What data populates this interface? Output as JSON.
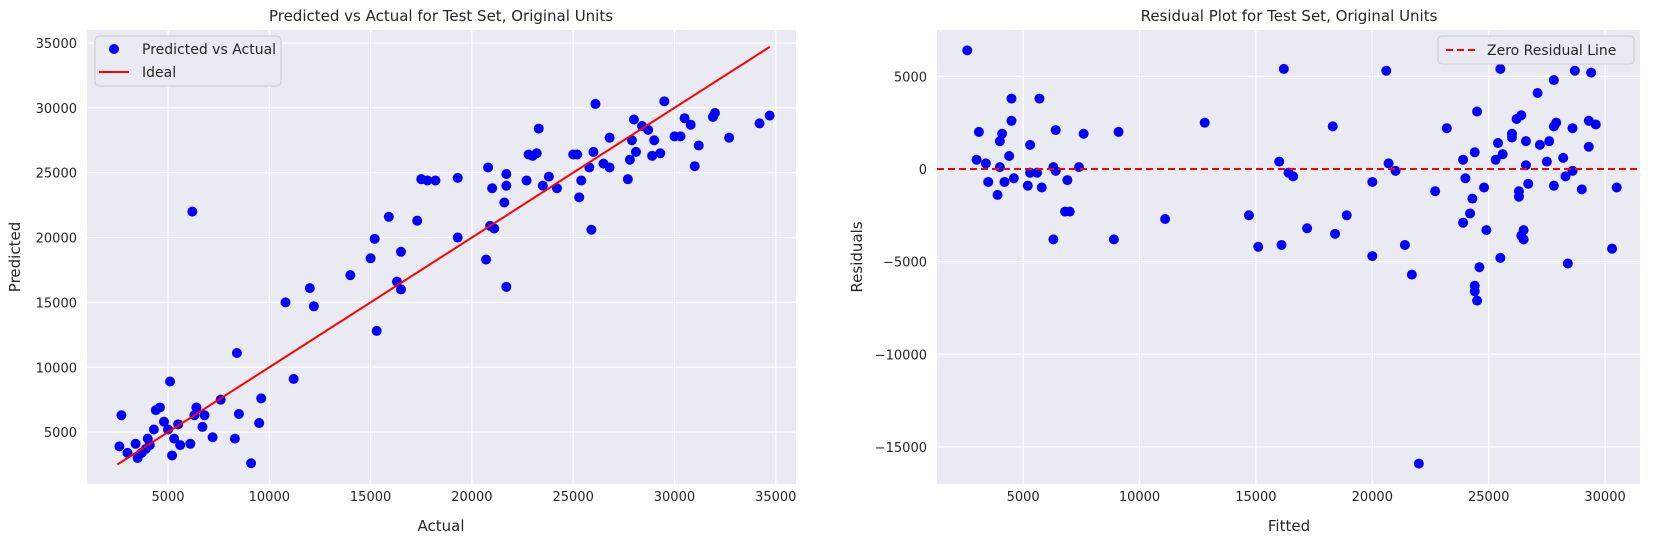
{
  "chart_data": [
    {
      "type": "scatter",
      "title": "Predicted vs Actual for Test Set, Original Units",
      "xlabel": "Actual",
      "ylabel": "Predicted",
      "xlim": [
        1000,
        36000
      ],
      "ylim": [
        1000,
        36000
      ],
      "xticks": [
        5000,
        10000,
        15000,
        20000,
        25000,
        30000,
        35000
      ],
      "yticks": [
        5000,
        10000,
        15000,
        20000,
        25000,
        30000,
        35000
      ],
      "xtick_labels": [
        "5000",
        "10000",
        "15000",
        "20000",
        "25000",
        "30000",
        "35000"
      ],
      "ytick_labels": [
        "5000",
        "10000",
        "15000",
        "20000",
        "25000",
        "30000",
        "35000"
      ],
      "grid": true,
      "legend_position": "top-left",
      "legend": [
        "Predicted vs Actual",
        "Ideal"
      ],
      "series": [
        {
          "name": "Predicted vs Actual",
          "color": "#0000ff",
          "marker": "circle",
          "points": [
            [
              2600,
              3900
            ],
            [
              2700,
              6300
            ],
            [
              3000,
              3400
            ],
            [
              3400,
              4100
            ],
            [
              3500,
              3000
            ],
            [
              3700,
              3400
            ],
            [
              3900,
              3700
            ],
            [
              4000,
              4500
            ],
            [
              4100,
              4000
            ],
            [
              4300,
              5200
            ],
            [
              4400,
              6700
            ],
            [
              4600,
              6900
            ],
            [
              4800,
              5800
            ],
            [
              5000,
              5200
            ],
            [
              5100,
              8900
            ],
            [
              5200,
              3200
            ],
            [
              5300,
              4500
            ],
            [
              5500,
              5600
            ],
            [
              5600,
              4000
            ],
            [
              6100,
              4100
            ],
            [
              6200,
              22000
            ],
            [
              6300,
              6300
            ],
            [
              6400,
              6900
            ],
            [
              6700,
              5400
            ],
            [
              6800,
              6300
            ],
            [
              7200,
              4600
            ],
            [
              7600,
              7500
            ],
            [
              8300,
              4500
            ],
            [
              8400,
              11100
            ],
            [
              8500,
              6400
            ],
            [
              9100,
              2600
            ],
            [
              9500,
              5700
            ],
            [
              9600,
              7600
            ],
            [
              10800,
              15000
            ],
            [
              11200,
              9100
            ],
            [
              12000,
              16100
            ],
            [
              12200,
              14700
            ],
            [
              14000,
              17100
            ],
            [
              15000,
              18400
            ],
            [
              15200,
              19900
            ],
            [
              15300,
              12800
            ],
            [
              15900,
              21600
            ],
            [
              16300,
              16600
            ],
            [
              16500,
              16000
            ],
            [
              16500,
              18900
            ],
            [
              17300,
              21300
            ],
            [
              17500,
              24500
            ],
            [
              17800,
              24400
            ],
            [
              18200,
              24400
            ],
            [
              19300,
              24600
            ],
            [
              19300,
              20000
            ],
            [
              20700,
              18300
            ],
            [
              20800,
              25400
            ],
            [
              20900,
              20900
            ],
            [
              21000,
              23800
            ],
            [
              21100,
              20700
            ],
            [
              21600,
              22700
            ],
            [
              21700,
              24900
            ],
            [
              21700,
              24000
            ],
            [
              21700,
              16200
            ],
            [
              22700,
              24400
            ],
            [
              22800,
              26400
            ],
            [
              23000,
              26300
            ],
            [
              23200,
              26500
            ],
            [
              23300,
              28400
            ],
            [
              23500,
              24000
            ],
            [
              23800,
              24700
            ],
            [
              24200,
              23800
            ],
            [
              25000,
              26400
            ],
            [
              25200,
              26400
            ],
            [
              25300,
              23100
            ],
            [
              25400,
              24400
            ],
            [
              25800,
              25400
            ],
            [
              25900,
              20600
            ],
            [
              26000,
              26600
            ],
            [
              26100,
              30300
            ],
            [
              26500,
              25700
            ],
            [
              26800,
              25400
            ],
            [
              26800,
              27700
            ],
            [
              27700,
              24500
            ],
            [
              27800,
              26000
            ],
            [
              27900,
              27500
            ],
            [
              28000,
              29100
            ],
            [
              28100,
              26600
            ],
            [
              28400,
              28600
            ],
            [
              28700,
              28300
            ],
            [
              28900,
              26300
            ],
            [
              29000,
              27500
            ],
            [
              29300,
              26500
            ],
            [
              29500,
              30500
            ],
            [
              30000,
              27800
            ],
            [
              30300,
              27800
            ],
            [
              30500,
              29200
            ],
            [
              30800,
              28700
            ],
            [
              31000,
              25500
            ],
            [
              31200,
              27100
            ],
            [
              31900,
              29300
            ],
            [
              32000,
              29600
            ],
            [
              32700,
              27700
            ],
            [
              34200,
              28800
            ],
            [
              34700,
              29400
            ]
          ]
        },
        {
          "name": "Ideal",
          "color": "#ff0000",
          "style": "line",
          "points": [
            [
              2500,
              2500
            ],
            [
              34700,
              34700
            ]
          ]
        }
      ]
    },
    {
      "type": "scatter",
      "title": "Residual Plot for Test Set, Original Units",
      "xlabel": "Fitted",
      "ylabel": "Residuals",
      "xlim": [
        1300,
        31500
      ],
      "ylim": [
        -17000,
        7500
      ],
      "xticks": [
        5000,
        10000,
        15000,
        20000,
        25000,
        30000
      ],
      "yticks": [
        -15000,
        -10000,
        -5000,
        0,
        5000
      ],
      "xtick_labels": [
        "5000",
        "10000",
        "15000",
        "20000",
        "25000",
        "30000"
      ],
      "ytick_labels": [
        "−15000",
        "−10000",
        "−5000",
        "0",
        "5000"
      ],
      "grid": true,
      "legend_position": "top-right",
      "legend": [
        "Zero Residual Line"
      ],
      "reference_line": {
        "name": "Zero Residual Line",
        "y": 0,
        "color": "#ff0000",
        "style": "dashed"
      },
      "series": [
        {
          "color": "#0000ff",
          "marker": "circle",
          "points": [
            [
              2600,
              6400
            ],
            [
              3000,
              500
            ],
            [
              3100,
              2000
            ],
            [
              3400,
              300
            ],
            [
              3500,
              -700
            ],
            [
              3900,
              -1400
            ],
            [
              4000,
              1500
            ],
            [
              4000,
              100
            ],
            [
              4100,
              1900
            ],
            [
              4200,
              -700
            ],
            [
              4400,
              700
            ],
            [
              4500,
              3800
            ],
            [
              4500,
              2600
            ],
            [
              4600,
              -500
            ],
            [
              5200,
              -900
            ],
            [
              5300,
              1300
            ],
            [
              5300,
              -200
            ],
            [
              5600,
              -200
            ],
            [
              5700,
              3800
            ],
            [
              5800,
              -1000
            ],
            [
              6300,
              100
            ],
            [
              6300,
              -3800
            ],
            [
              6400,
              -100
            ],
            [
              6400,
              2100
            ],
            [
              6800,
              -2300
            ],
            [
              6900,
              -600
            ],
            [
              7000,
              -2300
            ],
            [
              7400,
              100
            ],
            [
              7600,
              1900
            ],
            [
              8900,
              -3800
            ],
            [
              9100,
              2000
            ],
            [
              11100,
              -2700
            ],
            [
              12800,
              2500
            ],
            [
              14700,
              -2500
            ],
            [
              15100,
              -4200
            ],
            [
              16000,
              400
            ],
            [
              16100,
              -4100
            ],
            [
              16200,
              5400
            ],
            [
              16400,
              -200
            ],
            [
              16600,
              -400
            ],
            [
              17200,
              -3200
            ],
            [
              18300,
              2300
            ],
            [
              18400,
              -3500
            ],
            [
              18900,
              -2500
            ],
            [
              20000,
              -700
            ],
            [
              20000,
              -4700
            ],
            [
              20600,
              5300
            ],
            [
              20700,
              300
            ],
            [
              21000,
              -100
            ],
            [
              21400,
              -4100
            ],
            [
              21700,
              -5700
            ],
            [
              22000,
              -15900
            ],
            [
              22700,
              -1200
            ],
            [
              23200,
              2200
            ],
            [
              23900,
              500
            ],
            [
              23900,
              -2900
            ],
            [
              24000,
              -500
            ],
            [
              24200,
              -2400
            ],
            [
              24300,
              -1600
            ],
            [
              24400,
              -6300
            ],
            [
              24400,
              -6600
            ],
            [
              24400,
              900
            ],
            [
              24500,
              -7100
            ],
            [
              24500,
              3100
            ],
            [
              24600,
              -5300
            ],
            [
              24800,
              -1000
            ],
            [
              24900,
              -3300
            ],
            [
              25300,
              500
            ],
            [
              25400,
              1400
            ],
            [
              25500,
              -4800
            ],
            [
              25500,
              5400
            ],
            [
              25600,
              800
            ],
            [
              26000,
              1700
            ],
            [
              26000,
              1900
            ],
            [
              26200,
              2700
            ],
            [
              26300,
              -1200
            ],
            [
              26300,
              -1500
            ],
            [
              26400,
              2900
            ],
            [
              26400,
              -3600
            ],
            [
              26500,
              -3800
            ],
            [
              26500,
              -3300
            ],
            [
              26600,
              200
            ],
            [
              26600,
              1500
            ],
            [
              26700,
              -800
            ],
            [
              27100,
              4100
            ],
            [
              27200,
              1300
            ],
            [
              27500,
              400
            ],
            [
              27600,
              1500
            ],
            [
              27800,
              -900
            ],
            [
              27800,
              4800
            ],
            [
              27800,
              2300
            ],
            [
              27900,
              2500
            ],
            [
              28200,
              600
            ],
            [
              28300,
              -400
            ],
            [
              28400,
              -5100
            ],
            [
              28600,
              2200
            ],
            [
              28600,
              -100
            ],
            [
              28700,
              5300
            ],
            [
              29000,
              -1100
            ],
            [
              29300,
              1200
            ],
            [
              29300,
              2600
            ],
            [
              29400,
              5200
            ],
            [
              29600,
              2400
            ],
            [
              30300,
              -4300
            ],
            [
              30500,
              -1000
            ]
          ]
        }
      ]
    }
  ]
}
